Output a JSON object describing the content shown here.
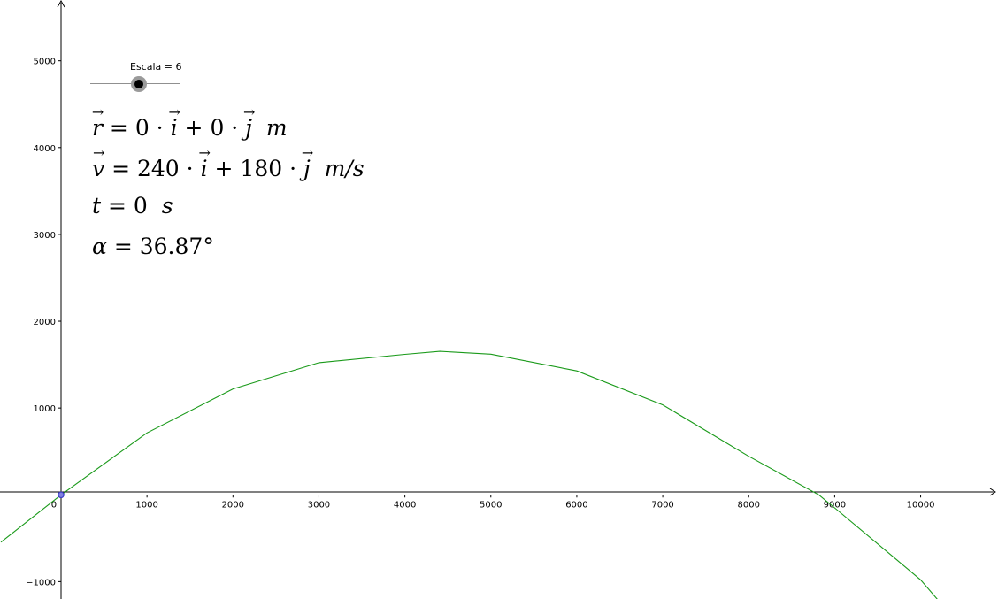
{
  "slider": {
    "label": "Escala = 6",
    "value": 6
  },
  "formulas": {
    "r": {
      "symbol": "r",
      "equals": "=",
      "x_coef": "0",
      "dot1": "·",
      "i": "i",
      "plus": "+",
      "y_coef": "0",
      "dot2": "·",
      "j": "j",
      "unit": "m"
    },
    "v": {
      "symbol": "v",
      "equals": "=",
      "x_coef": "240",
      "dot1": "·",
      "i": "i",
      "plus": "+",
      "y_coef": "180",
      "dot2": "·",
      "j": "j",
      "unit": "m/s"
    },
    "t": {
      "symbol": "t",
      "equals": "=",
      "value": "0",
      "unit": "s"
    },
    "alpha": {
      "symbol": "α",
      "equals": "=",
      "value": "36.87°"
    }
  },
  "axes": {
    "x_ticks": [
      "0",
      "1000",
      "2000",
      "3000",
      "4000",
      "5000",
      "6000",
      "7000",
      "8000",
      "9000",
      "10000"
    ],
    "y_ticks": [
      "−1000",
      "1000",
      "2000",
      "3000",
      "4000",
      "5000"
    ]
  },
  "chart_data": {
    "type": "line",
    "title": "",
    "xlabel": "",
    "ylabel": "",
    "xlim": [
      -710,
      10900
    ],
    "ylim": [
      -1200,
      5700
    ],
    "grid": false,
    "series": [
      {
        "color": "#1a9a1a",
        "x": [
          -700,
          0,
          1000,
          2000,
          3000,
          4000,
          4408,
          5000,
          6000,
          7000,
          8000,
          8816,
          9000,
          10000,
          10200
        ],
        "y": [
          -546,
          0,
          713,
          1220,
          1522,
          1618,
          1653,
          1620,
          1428,
          1036,
          444,
          0,
          -150,
          -980,
          -1210
        ]
      }
    ],
    "points": [
      {
        "x": 0,
        "y": 0,
        "color": "#3c3cc8"
      }
    ]
  }
}
